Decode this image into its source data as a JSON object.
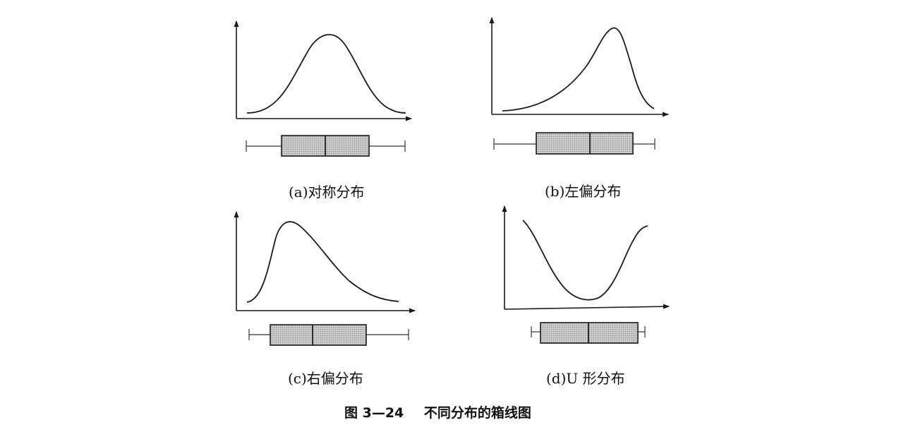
{
  "panels": [
    {
      "label": "(a)对称分布"
    },
    {
      "label": "(b)左偏分布"
    },
    {
      "label": "(c)右偏分布"
    },
    {
      "label": "(d)U 形分布"
    }
  ],
  "caption": {
    "number": "图 3—24",
    "text": "不同分布的箱线图"
  }
}
